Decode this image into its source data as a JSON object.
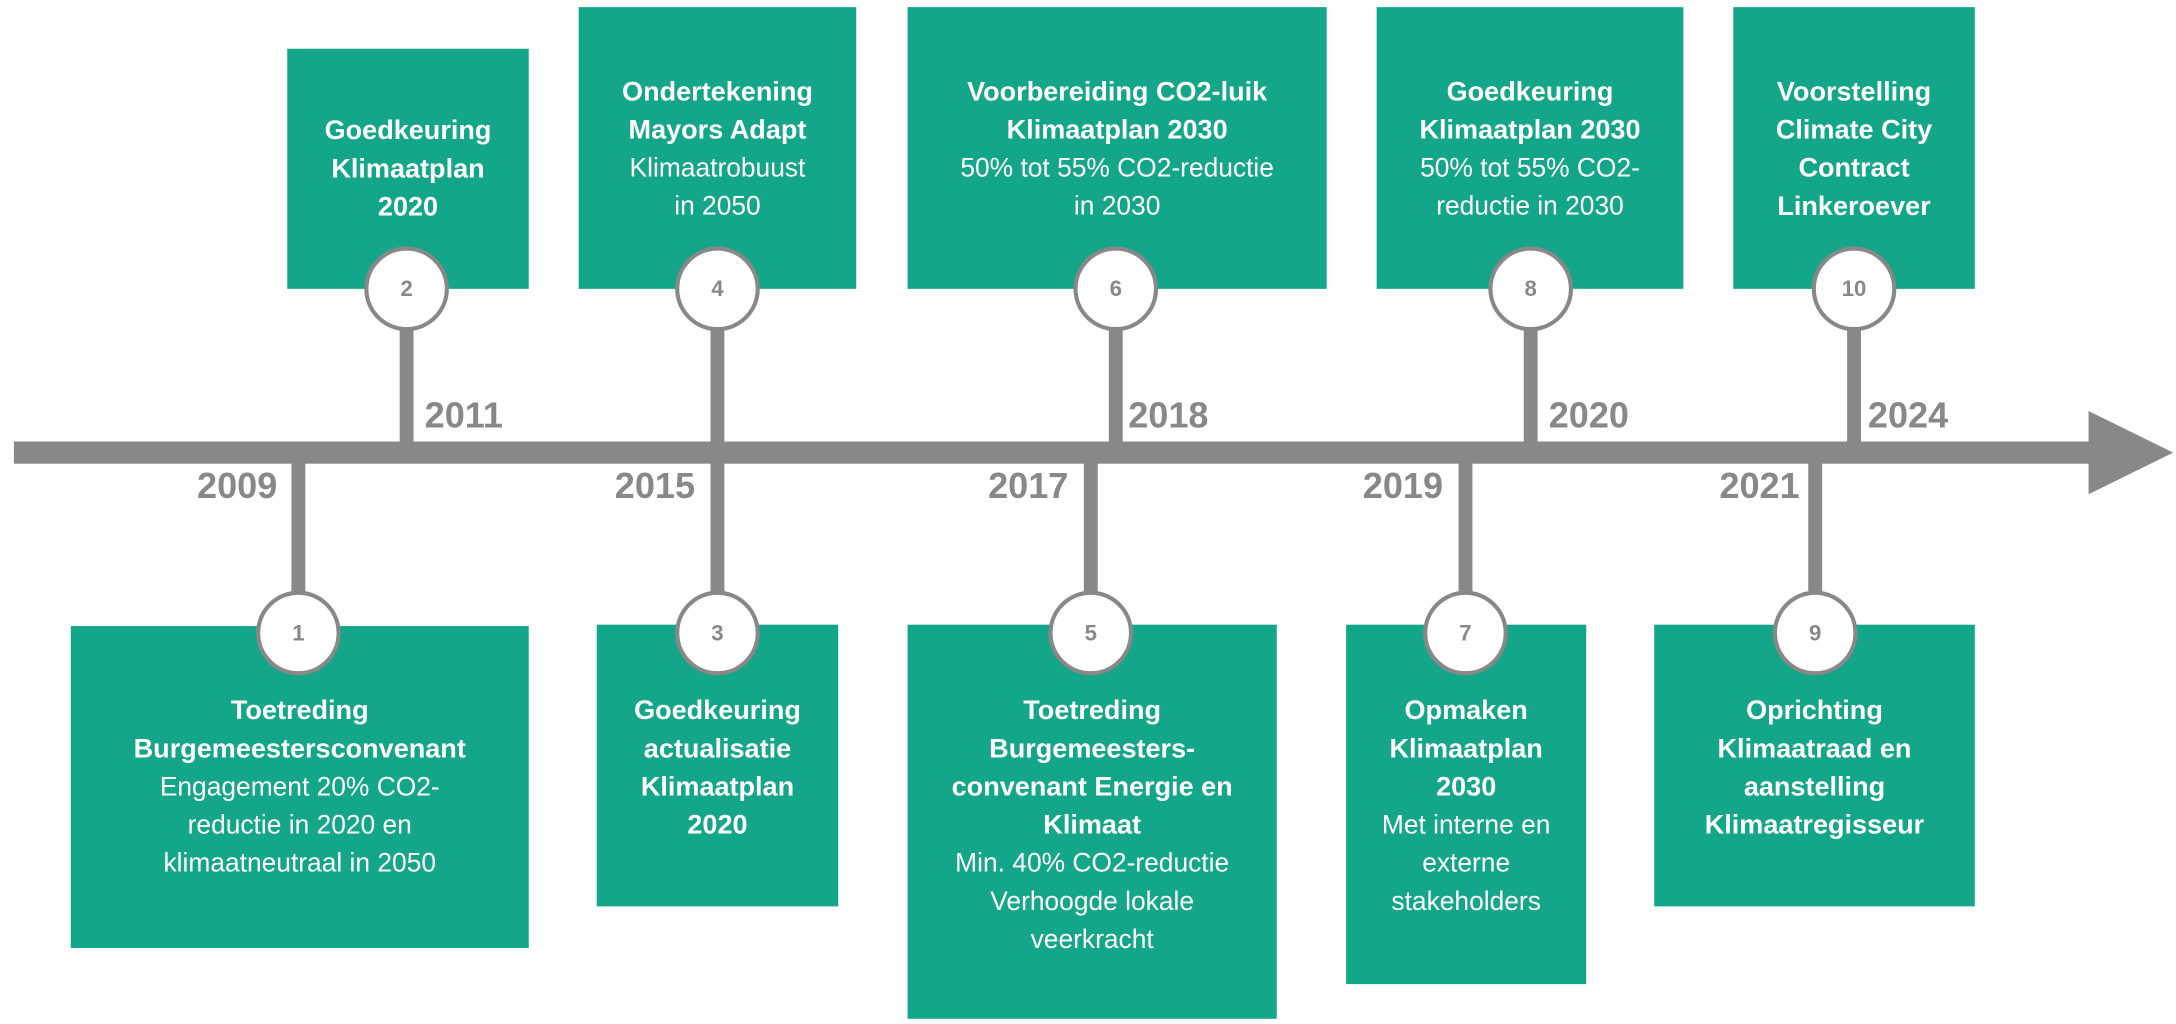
{
  "events": [
    {
      "number": "1",
      "year": "2009",
      "title": [
        "Toetreding",
        "Burgemeestersconvenant"
      ],
      "description": [
        "Engagement 20% CO2-",
        "reductie in 2020 en",
        "klimaatneutraal in 2050"
      ]
    },
    {
      "number": "2",
      "year": "2011",
      "title": [
        "Goedkeuring",
        "Klimaatplan",
        "2020"
      ],
      "description": []
    },
    {
      "number": "3",
      "year": "2015",
      "title": [
        "Goedkeuring",
        "actualisatie",
        "Klimaatplan",
        "2020"
      ],
      "description": []
    },
    {
      "number": "4",
      "title": [
        "Ondertekening",
        "Mayors Adapt"
      ],
      "description": [
        "Klimaatrobuust",
        "in 2050"
      ]
    },
    {
      "number": "5",
      "year": "2017",
      "title": [
        "Toetreding",
        "Burgemeesters-",
        "convenant Energie en",
        "Klimaat"
      ],
      "description": [
        "Min. 40% CO2-reductie",
        "Verhoogde lokale",
        "veerkracht"
      ]
    },
    {
      "number": "6",
      "year": "2018",
      "title": [
        "Voorbereiding CO2-luik",
        "Klimaatplan 2030"
      ],
      "description": [
        "50% tot 55% CO2-reductie",
        "in 2030"
      ]
    },
    {
      "number": "7",
      "year": "2019",
      "title": [
        "Opmaken",
        "Klimaatplan",
        "2030"
      ],
      "description": [
        "Met interne en",
        "externe",
        "stakeholders"
      ]
    },
    {
      "number": "8",
      "year": "2020",
      "title": [
        "Goedkeuring",
        "Klimaatplan 2030"
      ],
      "description": [
        "50% tot 55% CO2-",
        "reductie in 2030"
      ]
    },
    {
      "number": "9",
      "year": "2021",
      "title": [
        "Oprichting",
        "Klimaatraad en",
        "aanstelling",
        "Klimaatregisseur"
      ],
      "description": []
    },
    {
      "number": "10",
      "year": "2024",
      "title": [
        "Voorstelling",
        "Climate City",
        "Contract",
        "Linkeroever"
      ],
      "description": []
    }
  ]
}
